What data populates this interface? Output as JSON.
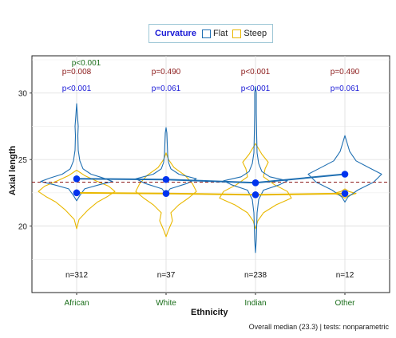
{
  "chart_data": {
    "type": "violin",
    "xlabel": "Ethnicity",
    "ylabel": "Axial length",
    "categories": [
      "African",
      "White",
      "Indian",
      "Other"
    ],
    "ylim": [
      15,
      32.8
    ],
    "yticks": [
      20,
      25,
      30
    ],
    "grid": true,
    "legend_position": "top",
    "legend_title": "Curvature",
    "series": [
      {
        "name": "Flat",
        "color": "#1f6fb2",
        "medians": [
          23.55,
          23.5,
          23.25,
          23.9
        ]
      },
      {
        "name": "Steep",
        "color": "#e9b800",
        "medians": [
          22.5,
          22.45,
          22.35,
          22.45
        ]
      }
    ],
    "reference_line": {
      "value": 23.3,
      "label": "Overall median (23.3)"
    },
    "annotations": {
      "p_top": [
        "p=0.008",
        "p=0.490",
        "p<0.001",
        "p=0.490"
      ],
      "p_bottom": [
        "p<0.001",
        "p=0.061",
        "p<0.001",
        "p=0.061"
      ],
      "p_overall": "p<0.001",
      "n": [
        "n=312",
        "n=37",
        "n=238",
        "n=12"
      ]
    },
    "caption": "Overall median (23.3) | tests: nonparametric",
    "colors": {
      "flat": "#1f6fb2",
      "steep": "#e9b800",
      "median_point": "#0033ee",
      "p_top": "#8b1a1a",
      "p_bottom": "#1a1ad6",
      "p_overall": "#1a6e1a",
      "x_tick": "#1a6e1a",
      "refline": "#8b1a1a"
    }
  }
}
